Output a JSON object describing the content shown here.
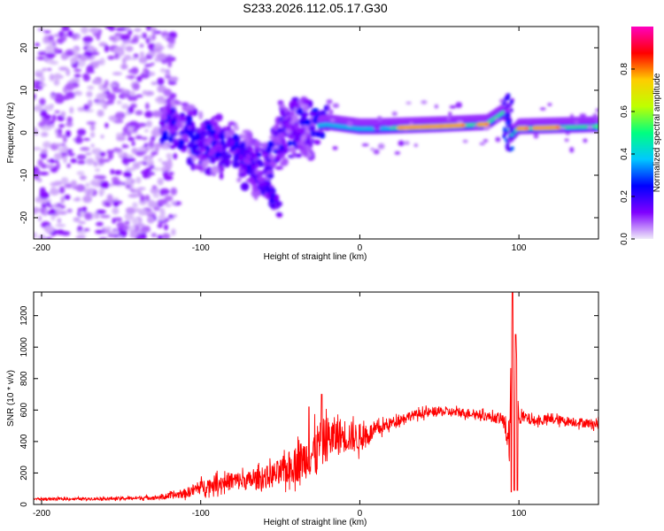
{
  "figure_title": "S233.2026.112.05.17.G30",
  "chart_data": [
    {
      "type": "heatmap",
      "title": "",
      "xlabel": "Height of straight line (km)",
      "ylabel": "Frequency (Hz)",
      "xlim": [
        -205,
        150
      ],
      "ylim": [
        -25,
        25
      ],
      "xticks": [
        -200,
        -100,
        0,
        100
      ],
      "yticks": [
        -20,
        -10,
        0,
        10,
        20
      ],
      "colorbar": {
        "label": "Normalized spectral amplitude",
        "range": [
          0,
          1
        ],
        "ticks": [
          "0.0",
          "0.2",
          "0.4",
          "0.6",
          "0.8"
        ],
        "tick_values": [
          0.0,
          0.2,
          0.4,
          0.6,
          0.8
        ],
        "colors": [
          "#f0ecf9",
          "#7f00ff",
          "#0000ff",
          "#00c8ff",
          "#00ff80",
          "#bfff00",
          "#ffcc00",
          "#ff0000",
          "#ff00c0"
        ]
      },
      "ridge": {
        "description_points_km_hz": [
          [
            -200,
            2
          ],
          [
            -120,
            2
          ],
          [
            -100,
            -2
          ],
          [
            -80,
            -4
          ],
          [
            -60,
            -10
          ],
          [
            -50,
            -1
          ],
          [
            -40,
            1
          ],
          [
            -20,
            2
          ],
          [
            0,
            1
          ],
          [
            10,
            1
          ],
          [
            50,
            1.5
          ],
          [
            80,
            2
          ],
          [
            92,
            5
          ],
          [
            95,
            -1
          ],
          [
            100,
            1
          ],
          [
            150,
            1.5
          ]
        ],
        "peak_segments_km": [
          [
            25,
            60
          ],
          [
            60,
            65
          ],
          [
            75,
            80
          ],
          [
            100,
            105
          ],
          [
            110,
            125
          ]
        ]
      },
      "colors": {
        "background": "#ffffff",
        "frame": "#000000"
      }
    },
    {
      "type": "line",
      "title": "",
      "xlabel": "Height of straight line (km)",
      "ylabel": "SNR (10 * v/v)",
      "xlim": [
        -205,
        150
      ],
      "ylim": [
        0,
        1350
      ],
      "xticks": [
        -200,
        -100,
        0,
        100
      ],
      "yticks": [
        0,
        200,
        400,
        600,
        800,
        1000,
        1200
      ],
      "series": [
        {
          "name": "SNR",
          "color": "#ff0000",
          "x": [
            -205,
            -180,
            -150,
            -125,
            -110,
            -100,
            -90,
            -80,
            -70,
            -60,
            -50,
            -40,
            -30,
            -25,
            -20,
            -10,
            0,
            10,
            20,
            30,
            40,
            50,
            60,
            70,
            80,
            90,
            94,
            96,
            97,
            98,
            100,
            110,
            120,
            130,
            140,
            150
          ],
          "y": [
            35,
            35,
            38,
            45,
            70,
            110,
            135,
            150,
            150,
            170,
            200,
            260,
            320,
            380,
            420,
            440,
            420,
            470,
            520,
            560,
            580,
            590,
            585,
            580,
            560,
            540,
            400,
            1350,
            100,
            1080,
            560,
            530,
            540,
            530,
            520,
            510
          ],
          "noise_amplitude": [
            8,
            8,
            10,
            14,
            30,
            45,
            55,
            60,
            60,
            70,
            90,
            120,
            140,
            160,
            140,
            110,
            90,
            50,
            35,
            30,
            30,
            30,
            30,
            30,
            30,
            35,
            150,
            0,
            0,
            0,
            50,
            30,
            30,
            30,
            30,
            30
          ]
        }
      ],
      "colors": {
        "background": "#ffffff",
        "frame": "#000000"
      }
    }
  ]
}
